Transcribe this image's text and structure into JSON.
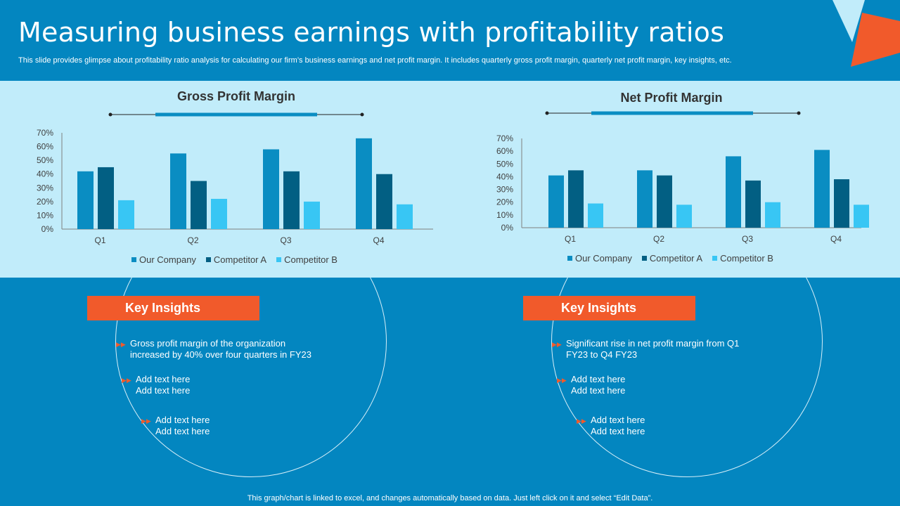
{
  "header": {
    "title": "Measuring business earnings with profitability ratios",
    "subtitle": "This slide provides glimpse about profitability ratio analysis for calculating our firm’s business earnings and net profit margin. It includes quarterly gross profit margin, quarterly net profit margin, key insights, etc."
  },
  "colors": {
    "our_company": "#0a8dc2",
    "competitor_a": "#025f83",
    "competitor_b": "#38c6f4",
    "accent": "#f15a2b",
    "band": "#c1ecfa",
    "background": "#0386c0"
  },
  "chart_data": [
    {
      "type": "bar",
      "title": "Gross Profit Margin",
      "categories": [
        "Q1",
        "Q2",
        "Q3",
        "Q4"
      ],
      "series": [
        {
          "name": "Our Company",
          "values": [
            42,
            55,
            58,
            66
          ]
        },
        {
          "name": "Competitor A",
          "values": [
            45,
            35,
            42,
            40
          ]
        },
        {
          "name": "Competitor B",
          "values": [
            21,
            22,
            20,
            18
          ]
        }
      ],
      "yticks": [
        "0%",
        "10%",
        "20%",
        "30%",
        "40%",
        "50%",
        "60%",
        "70%"
      ],
      "ylim": [
        0,
        70
      ],
      "legend_position": "bottom",
      "grid": false
    },
    {
      "type": "bar",
      "title": "Net Profit Margin",
      "categories": [
        "Q1",
        "Q2",
        "Q3",
        "Q4"
      ],
      "series": [
        {
          "name": "Our Company",
          "values": [
            41,
            45,
            56,
            61
          ]
        },
        {
          "name": "Competitor A",
          "values": [
            45,
            41,
            37,
            38
          ]
        },
        {
          "name": "Competitor B",
          "values": [
            19,
            18,
            20,
            18
          ]
        }
      ],
      "yticks": [
        "0%",
        "10%",
        "20%",
        "30%",
        "40%",
        "50%",
        "60%",
        "70%"
      ],
      "ylim": [
        0,
        70
      ],
      "legend_position": "bottom",
      "grid": false
    }
  ],
  "insights": [
    {
      "heading": "Key Insights",
      "bullets": [
        "Gross profit margin of the organization\nincreased by 40% over four quarters in FY23",
        "Add text here\nAdd text here",
        "Add text here\nAdd text here"
      ]
    },
    {
      "heading": "Key Insights",
      "bullets": [
        "Significant rise in net profit margin from Q1\nFY23 to Q4 FY23",
        "Add text here\nAdd text here",
        "Add text here\nAdd text here"
      ]
    }
  ],
  "footer": "This graph/chart is linked to excel,  and changes automatically based on data. Just left click on it and select “Edit Data”."
}
